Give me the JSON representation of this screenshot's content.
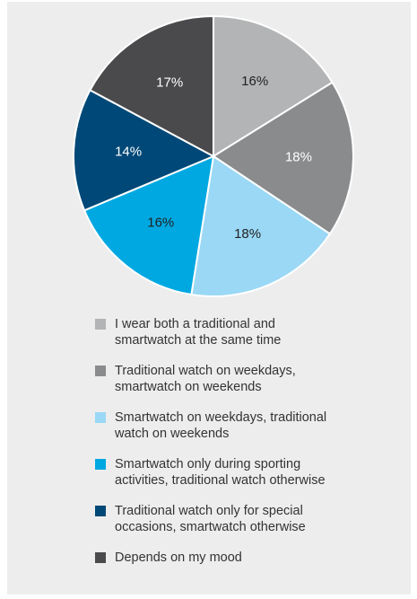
{
  "chart_data": {
    "type": "pie",
    "start_angle_deg": 0,
    "direction": "clockwise",
    "categories": [
      "I wear both a traditional and\nsmartwatch at the same time",
      "Traditional watch on weekdays,\nsmartwatch on weekends",
      "Smartwatch on weekdays, traditional\nwatch on weekends",
      "Smartwatch only during sporting\nactivities, traditional watch otherwise",
      "Traditional watch only for special\noccasions, smartwatch otherwise",
      "Depends on my mood"
    ],
    "values": [
      16,
      18,
      18,
      16,
      14,
      17
    ],
    "labels": [
      "16%",
      "18%",
      "18%",
      "16%",
      "14%",
      "17%"
    ],
    "colors": [
      "#b3b4b5",
      "#8a8b8d",
      "#9ad8f5",
      "#00a8e1",
      "#004877",
      "#4a4a4c"
    ],
    "label_colors": [
      "#222222",
      "#ffffff",
      "#222222",
      "#222222",
      "#ffffff",
      "#ffffff"
    ],
    "legend_position": "bottom"
  }
}
